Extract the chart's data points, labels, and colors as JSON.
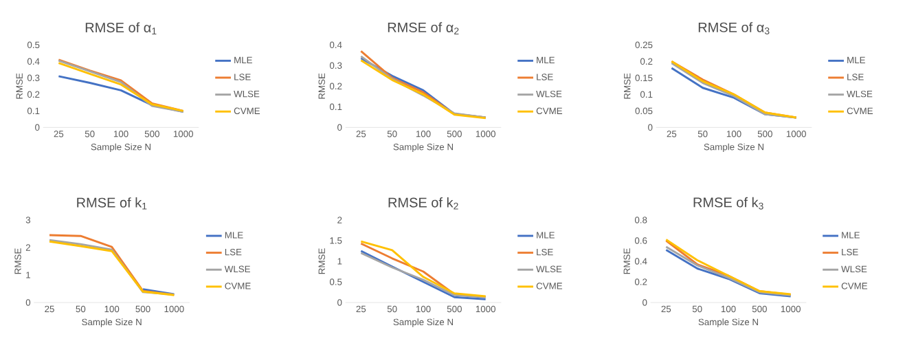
{
  "chart_data": [
    {
      "type": "line",
      "title": "RMSE of α$_{1}$",
      "xlabel": "Sample Size N",
      "ylabel": "RMSE",
      "categories": [
        "25",
        "50",
        "100",
        "500",
        "1000"
      ],
      "ylim": [
        0,
        0.5
      ],
      "yticks": [
        0,
        0.1,
        0.2,
        0.3,
        0.4,
        0.5
      ],
      "legend": "right",
      "series": [
        {
          "name": "MLE",
          "color": "#4472c4",
          "values": [
            0.31,
            0.27,
            0.225,
            0.135,
            0.095
          ]
        },
        {
          "name": "LSE",
          "color": "#ed7d31",
          "values": [
            0.41,
            0.345,
            0.285,
            0.145,
            0.1
          ]
        },
        {
          "name": "WLSE",
          "color": "#a5a5a5",
          "values": [
            0.405,
            0.34,
            0.275,
            0.13,
            0.095
          ]
        },
        {
          "name": "CVME",
          "color": "#ffc000",
          "values": [
            0.39,
            0.325,
            0.26,
            0.14,
            0.1
          ]
        }
      ]
    },
    {
      "type": "line",
      "title": "RMSE of α$_{2}$",
      "xlabel": "Sample Size N",
      "ylabel": "RMSE",
      "categories": [
        "25",
        "50",
        "100",
        "500",
        "1000"
      ],
      "ylim": [
        0,
        0.4
      ],
      "yticks": [
        0,
        0.1,
        0.2,
        0.3,
        0.4
      ],
      "legend": "right",
      "series": [
        {
          "name": "MLE",
          "color": "#4472c4",
          "values": [
            0.335,
            0.25,
            0.18,
            0.065,
            0.048
          ]
        },
        {
          "name": "LSE",
          "color": "#ed7d31",
          "values": [
            0.37,
            0.24,
            0.17,
            0.065,
            0.048
          ]
        },
        {
          "name": "WLSE",
          "color": "#a5a5a5",
          "values": [
            0.345,
            0.235,
            0.155,
            0.068,
            0.048
          ]
        },
        {
          "name": "CVME",
          "color": "#ffc000",
          "values": [
            0.325,
            0.23,
            0.16,
            0.062,
            0.045
          ]
        }
      ]
    },
    {
      "type": "line",
      "title": "RMSE of α$_{3}$",
      "xlabel": "Sample Size N",
      "ylabel": "RMSE",
      "categories": [
        "25",
        "50",
        "100",
        "500",
        "1000"
      ],
      "ylim": [
        0,
        0.25
      ],
      "yticks": [
        0,
        0.05,
        0.1,
        0.15,
        0.2,
        0.25
      ],
      "legend": "right",
      "series": [
        {
          "name": "MLE",
          "color": "#4472c4",
          "values": [
            0.18,
            0.12,
            0.09,
            0.04,
            0.03
          ]
        },
        {
          "name": "LSE",
          "color": "#ed7d31",
          "values": [
            0.2,
            0.145,
            0.1,
            0.045,
            0.03
          ]
        },
        {
          "name": "WLSE",
          "color": "#a5a5a5",
          "values": [
            0.195,
            0.135,
            0.095,
            0.04,
            0.03
          ]
        },
        {
          "name": "CVME",
          "color": "#ffc000",
          "values": [
            0.2,
            0.14,
            0.1,
            0.045,
            0.03
          ]
        }
      ]
    },
    {
      "type": "line",
      "title": "RMSE of k$_{1}$",
      "xlabel": "Sample Size N",
      "ylabel": "RMSE",
      "categories": [
        "25",
        "50",
        "100",
        "500",
        "1000"
      ],
      "ylim": [
        0,
        3
      ],
      "yticks": [
        0,
        1,
        2,
        3
      ],
      "legend": "right",
      "series": [
        {
          "name": "MLE",
          "color": "#4472c4",
          "values": [
            null,
            null,
            null,
            0.48,
            0.3
          ]
        },
        {
          "name": "LSE",
          "color": "#ed7d31",
          "values": [
            2.45,
            2.42,
            2.02,
            0.42,
            0.28
          ]
        },
        {
          "name": "WLSE",
          "color": "#a5a5a5",
          "values": [
            2.27,
            2.12,
            1.92,
            0.38,
            0.29
          ]
        },
        {
          "name": "CVME",
          "color": "#ffc000",
          "values": [
            2.22,
            2.05,
            1.87,
            0.4,
            0.27
          ]
        }
      ]
    },
    {
      "type": "line",
      "title": "RMSE of k$_{2}$",
      "xlabel": "Sample Size N",
      "ylabel": "RMSE",
      "categories": [
        "25",
        "50",
        "100",
        "500",
        "1000"
      ],
      "ylim": [
        0,
        2
      ],
      "yticks": [
        0,
        0.5,
        1,
        1.5,
        2
      ],
      "legend": "right",
      "series": [
        {
          "name": "MLE",
          "color": "#4472c4",
          "values": [
            1.25,
            0.87,
            0.5,
            0.13,
            0.08
          ]
        },
        {
          "name": "LSE",
          "color": "#ed7d31",
          "values": [
            1.43,
            1.07,
            0.75,
            0.2,
            0.14
          ]
        },
        {
          "name": "WLSE",
          "color": "#a5a5a5",
          "values": [
            1.2,
            0.85,
            0.55,
            0.18,
            0.13
          ]
        },
        {
          "name": "CVME",
          "color": "#ffc000",
          "values": [
            1.48,
            1.27,
            0.62,
            0.22,
            0.15
          ]
        }
      ]
    },
    {
      "type": "line",
      "title": "RMSE of k$_{3}$",
      "xlabel": "Sample Size N",
      "ylabel": "RMSE",
      "categories": [
        "25",
        "50",
        "100",
        "500",
        "1000"
      ],
      "ylim": [
        0,
        0.8
      ],
      "yticks": [
        0,
        0.2,
        0.4,
        0.6,
        0.8
      ],
      "legend": "right",
      "series": [
        {
          "name": "MLE",
          "color": "#4472c4",
          "values": [
            0.51,
            0.33,
            0.23,
            0.09,
            0.06
          ]
        },
        {
          "name": "LSE",
          "color": "#ed7d31",
          "values": [
            0.6,
            0.37,
            0.26,
            0.11,
            0.075
          ]
        },
        {
          "name": "WLSE",
          "color": "#a5a5a5",
          "values": [
            0.54,
            0.36,
            0.24,
            0.1,
            0.07
          ]
        },
        {
          "name": "CVME",
          "color": "#ffc000",
          "values": [
            0.61,
            0.41,
            0.26,
            0.11,
            0.08
          ]
        }
      ]
    }
  ]
}
